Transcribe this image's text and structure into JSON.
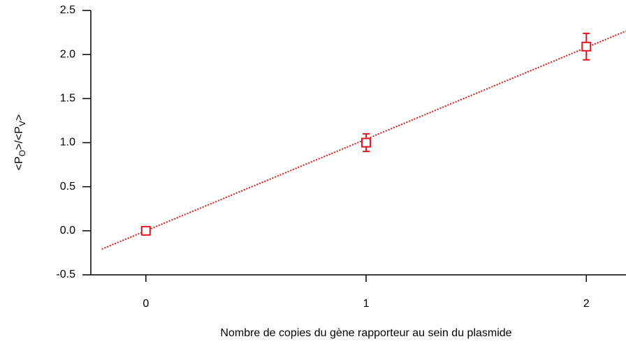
{
  "chart_data": {
    "type": "scatter",
    "xlabel": "Nombre de copies du gène rapporteur au sein du plasmide",
    "ylabel": [
      "<P",
      "O",
      ">/<P",
      "V",
      ">"
    ],
    "series": [
      {
        "x": [
          0,
          1,
          2
        ],
        "values": [
          0,
          1.0,
          2.09
        ],
        "errors": [
          0.02,
          0.1,
          0.15
        ],
        "color": "#e8141c"
      }
    ],
    "fit": {
      "x": [
        -0.2,
        2.18
      ],
      "y": [
        -0.208,
        2.267
      ],
      "color": "#e8141c",
      "style": "dotted"
    },
    "xlim": [
      -0.25,
      2.18
    ],
    "xticks": [
      0,
      1,
      2
    ],
    "ylim": [
      -0.5,
      2.5
    ],
    "yticks": [
      {
        "value": -0.5,
        "label": "-0.5"
      },
      {
        "value": 0,
        "label": "0.0"
      },
      {
        "value": 0.5,
        "label": "0.5"
      },
      {
        "value": 1,
        "label": "1.0"
      },
      {
        "value": 1.5,
        "label": "1.5"
      },
      {
        "value": 2,
        "label": "2.0"
      },
      {
        "value": 2.5,
        "label": "2.5"
      }
    ],
    "grid": false
  }
}
